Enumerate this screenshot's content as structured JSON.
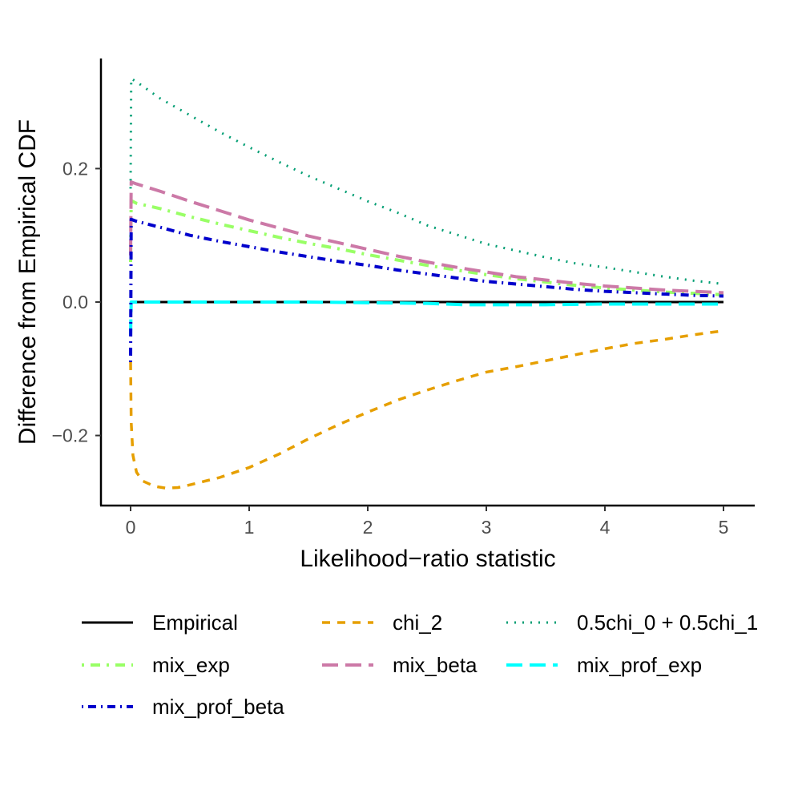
{
  "chart_data": {
    "type": "line",
    "title": "",
    "xlabel": "Likelihood−ratio statistic",
    "ylabel": "Difference from Empirical CDF",
    "xlim": [
      -0.25,
      5.25
    ],
    "ylim": [
      -0.305,
      0.365
    ],
    "xticks": [
      0,
      1,
      2,
      3,
      4,
      5
    ],
    "xtick_labels": [
      "0",
      "1",
      "2",
      "3",
      "4",
      "5"
    ],
    "yticks": [
      -0.2,
      0.0,
      0.2
    ],
    "ytick_labels": [
      "−0.2",
      "0.0",
      "0.2"
    ],
    "grid": false,
    "legend_position": "bottom",
    "series": [
      {
        "name": "Empirical",
        "color": "#000000",
        "dash": "solid",
        "points": [
          [
            0,
            0
          ],
          [
            5,
            0
          ]
        ]
      },
      {
        "name": "chi_2",
        "color": "#E69F00",
        "dash": "dashed",
        "points": [
          [
            0,
            -0.09
          ],
          [
            0.005,
            -0.18
          ],
          [
            0.02,
            -0.23
          ],
          [
            0.05,
            -0.255
          ],
          [
            0.1,
            -0.268
          ],
          [
            0.2,
            -0.276
          ],
          [
            0.3,
            -0.279
          ],
          [
            0.4,
            -0.278
          ],
          [
            0.5,
            -0.274
          ],
          [
            0.75,
            -0.263
          ],
          [
            1.0,
            -0.248
          ],
          [
            1.25,
            -0.228
          ],
          [
            1.5,
            -0.205
          ],
          [
            1.75,
            -0.184
          ],
          [
            2.0,
            -0.165
          ],
          [
            2.25,
            -0.147
          ],
          [
            2.5,
            -0.132
          ],
          [
            2.75,
            -0.118
          ],
          [
            3.0,
            -0.105
          ],
          [
            3.25,
            -0.097
          ],
          [
            3.5,
            -0.088
          ],
          [
            3.75,
            -0.079
          ],
          [
            4.0,
            -0.07
          ],
          [
            4.25,
            -0.062
          ],
          [
            4.5,
            -0.056
          ],
          [
            4.75,
            -0.049
          ],
          [
            5.0,
            -0.043
          ]
        ]
      },
      {
        "name": "0.5chi_0 + 0.5chi_1",
        "color": "#009E73",
        "dash": "dotted",
        "points": [
          [
            0,
            0.17
          ],
          [
            0.005,
            0.335
          ],
          [
            0.05,
            0.33
          ],
          [
            0.25,
            0.305
          ],
          [
            0.5,
            0.28
          ],
          [
            0.75,
            0.255
          ],
          [
            1.0,
            0.232
          ],
          [
            1.25,
            0.21
          ],
          [
            1.5,
            0.189
          ],
          [
            1.75,
            0.17
          ],
          [
            2.0,
            0.151
          ],
          [
            2.25,
            0.134
          ],
          [
            2.5,
            0.115
          ],
          [
            2.75,
            0.101
          ],
          [
            3.0,
            0.087
          ],
          [
            3.25,
            0.077
          ],
          [
            3.5,
            0.067
          ],
          [
            3.75,
            0.058
          ],
          [
            4.0,
            0.052
          ],
          [
            4.25,
            0.045
          ],
          [
            4.5,
            0.038
          ],
          [
            4.75,
            0.032
          ],
          [
            5.0,
            0.027
          ]
        ]
      },
      {
        "name": "mix_exp",
        "color": "#99FF66",
        "dash": "dashdot",
        "points": [
          [
            0,
            0.06
          ],
          [
            0.005,
            0.152
          ],
          [
            0.05,
            0.148
          ],
          [
            0.25,
            0.14
          ],
          [
            0.5,
            0.128
          ],
          [
            0.75,
            0.117
          ],
          [
            1.0,
            0.107
          ],
          [
            1.25,
            0.097
          ],
          [
            1.5,
            0.088
          ],
          [
            1.75,
            0.08
          ],
          [
            2.0,
            0.071
          ],
          [
            2.25,
            0.063
          ],
          [
            2.5,
            0.055
          ],
          [
            2.75,
            0.048
          ],
          [
            3.0,
            0.041
          ],
          [
            3.25,
            0.035
          ],
          [
            3.5,
            0.03
          ],
          [
            3.75,
            0.025
          ],
          [
            4.0,
            0.021
          ],
          [
            4.25,
            0.018
          ],
          [
            4.5,
            0.015
          ],
          [
            4.75,
            0.013
          ],
          [
            5.0,
            0.011
          ]
        ]
      },
      {
        "name": "mix_beta",
        "color": "#CC79A7",
        "dash": "longdash",
        "points": [
          [
            0,
            0.07
          ],
          [
            0.005,
            0.18
          ],
          [
            0.05,
            0.177
          ],
          [
            0.25,
            0.166
          ],
          [
            0.5,
            0.151
          ],
          [
            0.75,
            0.137
          ],
          [
            1.0,
            0.123
          ],
          [
            1.25,
            0.111
          ],
          [
            1.5,
            0.099
          ],
          [
            1.75,
            0.089
          ],
          [
            2.0,
            0.079
          ],
          [
            2.25,
            0.069
          ],
          [
            2.5,
            0.06
          ],
          [
            2.75,
            0.052
          ],
          [
            3.0,
            0.045
          ],
          [
            3.25,
            0.038
          ],
          [
            3.5,
            0.033
          ],
          [
            3.75,
            0.028
          ],
          [
            4.0,
            0.024
          ],
          [
            4.25,
            0.021
          ],
          [
            4.5,
            0.018
          ],
          [
            4.75,
            0.016
          ],
          [
            5.0,
            0.014
          ]
        ]
      },
      {
        "name": "mix_prof_exp",
        "color": "#00FFFF",
        "dash": "longdash",
        "points": [
          [
            0,
            -0.05
          ],
          [
            0.005,
            0.0
          ],
          [
            0.5,
            0.0
          ],
          [
            1.0,
            0.0
          ],
          [
            1.5,
            0.0
          ],
          [
            2.0,
            -0.001
          ],
          [
            2.5,
            -0.002
          ],
          [
            2.8,
            -0.004
          ],
          [
            3.0,
            -0.004
          ],
          [
            3.5,
            -0.004
          ],
          [
            4.0,
            -0.003
          ],
          [
            4.5,
            -0.003
          ],
          [
            5.0,
            -0.003
          ]
        ]
      },
      {
        "name": "mix_prof_beta",
        "color": "#0000CC",
        "dash": "dotdash",
        "points": [
          [
            0,
            -0.09
          ],
          [
            0.005,
            0.124
          ],
          [
            0.05,
            0.121
          ],
          [
            0.25,
            0.112
          ],
          [
            0.5,
            0.1
          ],
          [
            0.75,
            0.091
          ],
          [
            1.0,
            0.083
          ],
          [
            1.25,
            0.075
          ],
          [
            1.5,
            0.068
          ],
          [
            1.75,
            0.061
          ],
          [
            2.0,
            0.055
          ],
          [
            2.25,
            0.048
          ],
          [
            2.5,
            0.042
          ],
          [
            2.75,
            0.036
          ],
          [
            3.0,
            0.031
          ],
          [
            3.25,
            0.027
          ],
          [
            3.5,
            0.023
          ],
          [
            3.75,
            0.019
          ],
          [
            4.0,
            0.016
          ],
          [
            4.25,
            0.014
          ],
          [
            4.5,
            0.012
          ],
          [
            4.75,
            0.01
          ],
          [
            5.0,
            0.009
          ]
        ]
      }
    ],
    "legend": [
      {
        "label": "Empirical",
        "color": "#000000",
        "dash": "solid"
      },
      {
        "label": "chi_2",
        "color": "#E69F00",
        "dash": "dashed"
      },
      {
        "label": "0.5chi_0 + 0.5chi_1",
        "color": "#009E73",
        "dash": "dotted"
      },
      {
        "label": "mix_exp",
        "color": "#99FF66",
        "dash": "dashdot"
      },
      {
        "label": "mix_beta",
        "color": "#CC79A7",
        "dash": "longdash"
      },
      {
        "label": "mix_prof_exp",
        "color": "#00FFFF",
        "dash": "longdash"
      },
      {
        "label": "mix_prof_beta",
        "color": "#0000CC",
        "dash": "dotdash"
      }
    ]
  }
}
